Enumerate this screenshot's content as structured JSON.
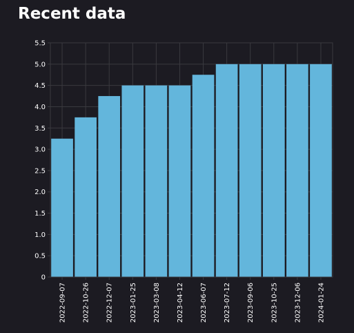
{
  "page": {
    "title": "Recent data"
  },
  "colors": {
    "background": "#1c1b22",
    "plot_background": "#1c1b22",
    "grid": "#3a3a3f",
    "bar": "#63b6dc",
    "text": "#ffffff"
  },
  "chart_data": {
    "type": "bar",
    "title": "",
    "xlabel": "",
    "ylabel": "",
    "categories": [
      "2022-09-07",
      "2022-10-26",
      "2022-12-07",
      "2023-01-25",
      "2023-03-08",
      "2023-04-12",
      "2023-06-07",
      "2023-07-12",
      "2023-09-06",
      "2023-10-25",
      "2023-12-06",
      "2024-01-24"
    ],
    "values": [
      3.25,
      3.75,
      4.25,
      4.5,
      4.5,
      4.5,
      4.75,
      5.0,
      5.0,
      5.0,
      5.0,
      5.0
    ],
    "ylim": [
      0,
      5.5
    ],
    "yticks": [
      "0",
      "0.5",
      "1.0",
      "1.5",
      "2.0",
      "2.5",
      "3.0",
      "3.5",
      "4.0",
      "4.5",
      "5.0",
      "5.5"
    ],
    "grid": true,
    "legend": "none"
  }
}
